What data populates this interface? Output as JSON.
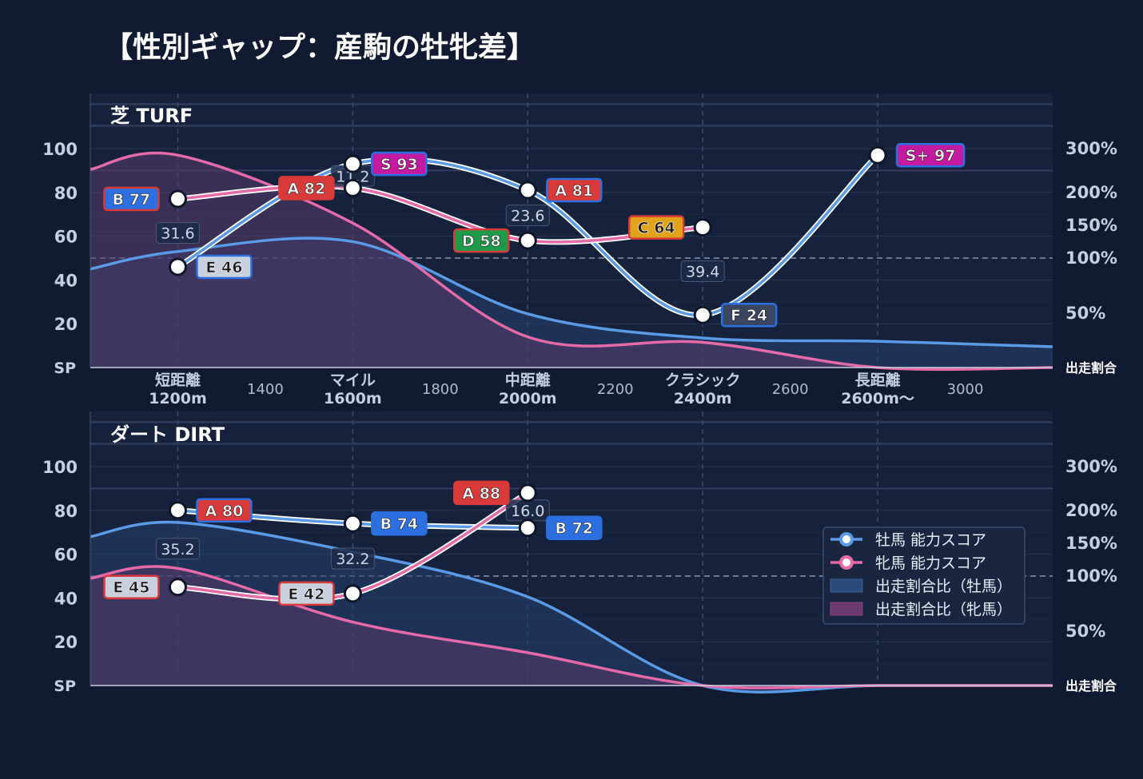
{
  "title": "【性別ギャップ：産駒の牡牝差】",
  "colors": {
    "male": "#5b9ae6",
    "female": "#e46aa8",
    "male_fill": "#24406e",
    "female_fill": "#5a3a6a",
    "panel_bg": "#16223b",
    "grade_S+": "#c41aa0",
    "grade_S": "#c41aa0",
    "grade_A": "#d83a3a",
    "grade_B": "#2c6fe0",
    "grade_C": "#e0a319",
    "grade_D": "#1f9a4a",
    "grade_E": "#c8d0de",
    "grade_F": "#3a4660"
  },
  "legend": [
    {
      "label": "牡馬 能力スコア",
      "kind": "line",
      "series": "male"
    },
    {
      "label": "牝馬 能力スコア",
      "kind": "line",
      "series": "female"
    },
    {
      "label": "出走割合比（牡馬）",
      "kind": "area",
      "series": "male"
    },
    {
      "label": "出走割合比（牝馬）",
      "kind": "area",
      "series": "female"
    }
  ],
  "chart_data": [
    {
      "type": "line",
      "title": "芝 TURF",
      "categories": [
        "短距離\n1200m",
        "マイル\n1600m",
        "中距離\n2000m",
        "クラシック\n2400m",
        "長距離\n2600m〜"
      ],
      "minor_ticks": [
        {
          "x": 1400,
          "label": "1400"
        },
        {
          "x": 1800,
          "label": "1800"
        },
        {
          "x": 2200,
          "label": "2200"
        },
        {
          "x": 2600,
          "label": "2600"
        },
        {
          "x": 3000,
          "label": "3000"
        }
      ],
      "x_values": [
        1200,
        1600,
        2000,
        2400,
        2800
      ],
      "xlim": [
        1000,
        3200
      ],
      "y_left": {
        "ticks": [
          100,
          80,
          60,
          40,
          20
        ],
        "bottom_label": "SP",
        "ylim": [
          0,
          100
        ]
      },
      "y_right": {
        "ticks": [
          "300%",
          "200%",
          "150%",
          "100%",
          "50%"
        ],
        "bottom_label": "出走割合"
      },
      "series": [
        {
          "name": "牡馬 能力スコア",
          "key": "male",
          "values": [
            46,
            93,
            81,
            24,
            97
          ],
          "grades": [
            "E 46",
            "S 93",
            "A 81",
            "F 24",
            "S+ 97"
          ]
        },
        {
          "name": "牝馬 能力スコア",
          "key": "female",
          "values": [
            77,
            82,
            58,
            64,
            null
          ],
          "grades": [
            "B 77",
            "A 82",
            "D 58",
            "C 64",
            null
          ]
        }
      ],
      "gaps": [
        {
          "x": 1200,
          "label": "31.6"
        },
        {
          "x": 1600,
          "label": "11.2"
        },
        {
          "x": 2000,
          "label": "23.6"
        },
        {
          "x": 2400,
          "label": "39.4"
        }
      ],
      "ratio_areas": [
        {
          "name": "出走割合比（牡馬）",
          "key": "male",
          "points": [
            [
              1000,
              45
            ],
            [
              1200,
              53
            ],
            [
              1600,
              57.5
            ],
            [
              2000,
              24.5
            ],
            [
              2400,
              13.5
            ],
            [
              2800,
              12
            ],
            [
              3200,
              9.5
            ]
          ]
        },
        {
          "name": "出走割合比（牝馬）",
          "key": "female",
          "points": [
            [
              1000,
              90.5
            ],
            [
              1200,
              97
            ],
            [
              1600,
              66
            ],
            [
              2000,
              14
            ],
            [
              2400,
              11.5
            ],
            [
              2800,
              0
            ],
            [
              3200,
              0
            ]
          ]
        }
      ]
    },
    {
      "type": "line",
      "title": "ダート DIRT",
      "x_values": [
        1200,
        1600,
        2000
      ],
      "xlim": [
        1000,
        3200
      ],
      "y_left": {
        "ticks": [
          100,
          80,
          60,
          40,
          20
        ],
        "bottom_label": "SP",
        "ylim": [
          0,
          100
        ]
      },
      "y_right": {
        "ticks": [
          "300%",
          "200%",
          "150%",
          "100%",
          "50%"
        ],
        "bottom_label": "出走割合"
      },
      "series": [
        {
          "name": "牡馬 能力スコア",
          "key": "male",
          "values": [
            80,
            74,
            72
          ],
          "grades": [
            "A 80",
            "B 74",
            "B 72"
          ]
        },
        {
          "name": "牝馬 能力スコア",
          "key": "female",
          "values": [
            45,
            42,
            88
          ],
          "grades": [
            "E 45",
            "E 42",
            "A 88"
          ]
        }
      ],
      "gaps": [
        {
          "x": 1200,
          "label": "35.2"
        },
        {
          "x": 1600,
          "label": "32.2"
        },
        {
          "x": 2000,
          "label": "16.0"
        }
      ],
      "ratio_areas": [
        {
          "name": "出走割合比（牡馬）",
          "key": "male",
          "points": [
            [
              1000,
              68
            ],
            [
              1200,
              74.5
            ],
            [
              1600,
              61
            ],
            [
              2000,
              40.5
            ],
            [
              2400,
              0
            ],
            [
              2800,
              0
            ],
            [
              3200,
              0
            ]
          ]
        },
        {
          "name": "出走割合比（牝馬）",
          "key": "female",
          "points": [
            [
              1000,
              49
            ],
            [
              1200,
              53.5
            ],
            [
              1600,
              29
            ],
            [
              2000,
              15
            ],
            [
              2400,
              0
            ],
            [
              2800,
              0
            ],
            [
              3200,
              0
            ]
          ]
        }
      ]
    }
  ]
}
